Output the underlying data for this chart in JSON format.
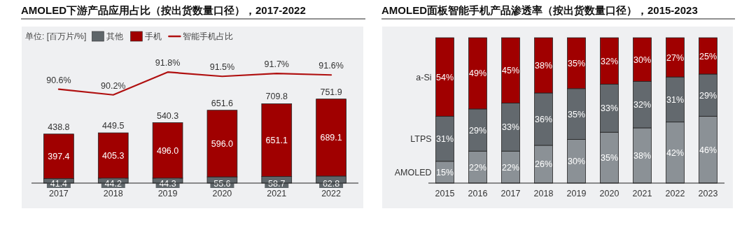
{
  "chart_data": [
    {
      "type": "bar",
      "title": "AMOLED下游产品应用占比（按出货数量口径），2017-2022",
      "legend_title": "单位: [百万片/%]",
      "legend": "top left",
      "stacked": true,
      "tick_labels": "x",
      "categories": [
        "2017",
        "2018",
        "2019",
        "2020",
        "2021",
        "2022"
      ],
      "ylim": [
        0,
        1400
      ],
      "y2lim": [
        84,
        95
      ],
      "series": [
        {
          "name": "其他",
          "color": "#5f666a",
          "values": [
            41.4,
            44.2,
            44.3,
            55.6,
            58.7,
            62.8
          ],
          "value_labels": [
            "41.4",
            "44.2",
            "44.3",
            "55.6",
            "58.7",
            "62.8"
          ]
        },
        {
          "name": "手机",
          "color": "#a00000",
          "values": [
            397.4,
            405.3,
            496.0,
            596.0,
            651.1,
            689.1
          ],
          "value_labels": [
            "397.4",
            "405.3",
            "496.0",
            "596.0",
            "651.1",
            "689.1"
          ]
        },
        {
          "name": "智能手机占比",
          "type": "line",
          "axis": "y2",
          "color": "#b01010",
          "values": [
            90.6,
            90.2,
            91.8,
            91.5,
            91.7,
            91.6
          ],
          "value_labels": [
            "90.6%",
            "90.2%",
            "91.8%",
            "91.5%",
            "91.7%",
            "91.6%"
          ]
        }
      ],
      "totals": [
        "438.8",
        "449.5",
        "540.3",
        "651.6",
        "709.8",
        "751.9"
      ]
    },
    {
      "type": "bar",
      "title": "AMOLED面板智能手机产品渗透率（按出货数量口径），2015-2023",
      "stacked": true,
      "tick_labels": "x",
      "categories": [
        "2015",
        "2016",
        "2017",
        "2018",
        "2019",
        "2020",
        "2021",
        "2022",
        "2023"
      ],
      "ylim": [
        0,
        100
      ],
      "series": [
        {
          "name": "AMOLED",
          "color": "#8b9196",
          "values": [
            15,
            22,
            22,
            26,
            30,
            35,
            38,
            42,
            46
          ],
          "value_labels": [
            "15%",
            "22%",
            "22%",
            "26%",
            "30%",
            "35%",
            "38%",
            "42%",
            "46%"
          ]
        },
        {
          "name": "LTPS",
          "color": "#63696e",
          "values": [
            31,
            29,
            33,
            36,
            35,
            33,
            32,
            31,
            29
          ],
          "value_labels": [
            "31%",
            "29%",
            "33%",
            "36%",
            "35%",
            "33%",
            "32%",
            "31%",
            "29%"
          ]
        },
        {
          "name": "a-Si",
          "color": "#a00000",
          "values": [
            54,
            49,
            45,
            38,
            35,
            32,
            30,
            27,
            25
          ],
          "value_labels": [
            "54%",
            "49%",
            "45%",
            "38%",
            "35%",
            "32%",
            "30%",
            "27%",
            "25%"
          ]
        }
      ]
    }
  ]
}
